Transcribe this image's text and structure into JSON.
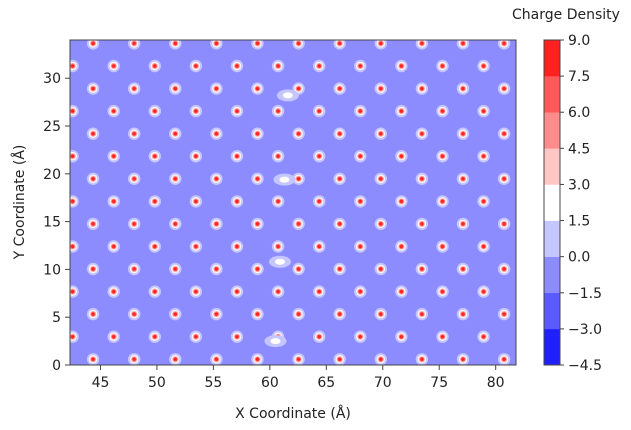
{
  "chart_data": {
    "type": "heatmap",
    "subtype": "filled-contour",
    "xlabel": "X Coordinate (Å)",
    "ylabel": "Y Coordinate (Å)",
    "colorbar_title": "Charge Density",
    "xlim": [
      42.3,
      81.8
    ],
    "ylim": [
      0,
      34
    ],
    "x_ticks": [
      45,
      50,
      55,
      60,
      65,
      70,
      75,
      80
    ],
    "y_ticks": [
      0,
      5,
      10,
      15,
      20,
      25,
      30
    ],
    "x_tick_labels": [
      "45",
      "50",
      "55",
      "60",
      "65",
      "70",
      "75",
      "80"
    ],
    "y_tick_labels": [
      "0",
      "5",
      "10",
      "15",
      "20",
      "25",
      "30"
    ],
    "background_value": -0.75,
    "colorbar": {
      "levels": [
        -4.5,
        -3.0,
        -1.5,
        0.0,
        1.5,
        3.0,
        4.5,
        6.0,
        7.5,
        9.0
      ],
      "level_labels": [
        "−4.5",
        "−3.0",
        "−1.5",
        "0.0",
        "1.5",
        "3.0",
        "4.5",
        "6.0",
        "7.5",
        "9.0"
      ],
      "colors": [
        "#2020ff",
        "#5a5aff",
        "#8c8cff",
        "#c6c6ff",
        "#ffffff",
        "#ffc6c6",
        "#ff8c8c",
        "#ff5a5a",
        "#ff2020"
      ]
    },
    "lattice": {
      "a1": [
        3.64,
        0.0
      ],
      "a2": [
        1.82,
        2.36
      ],
      "origin": [
        44.35,
        0.6
      ],
      "site_peak_value": 8.0,
      "weak_site_value": 1.0,
      "weak_sites": [
        [
          60.5,
          2.5
        ],
        [
          60.9,
          10.8
        ],
        [
          61.3,
          19.4
        ],
        [
          61.6,
          28.2
        ]
      ]
    }
  }
}
